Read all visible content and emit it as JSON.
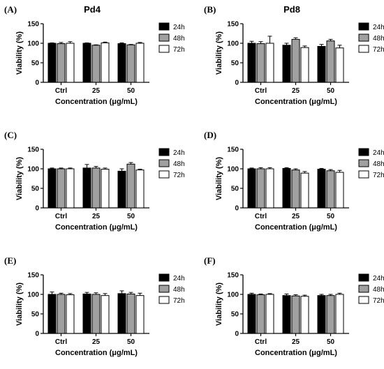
{
  "chart_data": [
    {
      "type": "bar",
      "panel_label": "(A)",
      "title": "Pd4",
      "xlabel": "Concentration (μg/mL)",
      "ylabel": "Viability (%)",
      "categories": [
        "Ctrl",
        "25",
        "50"
      ],
      "yticks": [
        "0",
        "50",
        "100",
        "150"
      ],
      "ylim": [
        0,
        150
      ],
      "legend_position": "right",
      "grid": false,
      "series": [
        {
          "name": "24h",
          "color": "#000000",
          "values": [
            100,
            100,
            99
          ],
          "errors": [
            1,
            1,
            2
          ]
        },
        {
          "name": "48h",
          "color": "#a0a0a0",
          "values": [
            99,
            95,
            96
          ],
          "errors": [
            3,
            1,
            1
          ]
        },
        {
          "name": "72h",
          "color": "#ffffff",
          "values": [
            100,
            101,
            100
          ],
          "errors": [
            4,
            2,
            2
          ]
        }
      ]
    },
    {
      "type": "bar",
      "panel_label": "(B)",
      "title": "Pd8",
      "xlabel": "Concentration (μg/mL)",
      "ylabel": "Viability (%)",
      "categories": [
        "Ctrl",
        "25",
        "50"
      ],
      "yticks": [
        "0",
        "50",
        "100",
        "150"
      ],
      "ylim": [
        0,
        150
      ],
      "legend_position": "right",
      "grid": false,
      "series": [
        {
          "name": "24h",
          "color": "#000000",
          "values": [
            100,
            95,
            92
          ],
          "errors": [
            5,
            5,
            5
          ]
        },
        {
          "name": "48h",
          "color": "#a0a0a0",
          "values": [
            99,
            110,
            106
          ],
          "errors": [
            5,
            4,
            4
          ]
        },
        {
          "name": "72h",
          "color": "#ffffff",
          "values": [
            100,
            89,
            88
          ],
          "errors": [
            18,
            4,
            7
          ]
        }
      ]
    },
    {
      "type": "bar",
      "panel_label": "(C)",
      "title": "",
      "xlabel": "Concentration (μg/mL)",
      "ylabel": "Viability (%)",
      "categories": [
        "Ctrl",
        "25",
        "50"
      ],
      "yticks": [
        "0",
        "50",
        "100",
        "150"
      ],
      "ylim": [
        0,
        150
      ],
      "legend_position": "right",
      "grid": false,
      "series": [
        {
          "name": "24h",
          "color": "#000000",
          "values": [
            100,
            102,
            94
          ],
          "errors": [
            2,
            9,
            6
          ]
        },
        {
          "name": "48h",
          "color": "#a0a0a0",
          "values": [
            100,
            102,
            112
          ],
          "errors": [
            2,
            4,
            4
          ]
        },
        {
          "name": "72h",
          "color": "#ffffff",
          "values": [
            100,
            99,
            97
          ],
          "errors": [
            2,
            3,
            2
          ]
        }
      ]
    },
    {
      "type": "bar",
      "panel_label": "(D)",
      "title": "",
      "xlabel": "Concentration (μg/mL)",
      "ylabel": "Viability (%)",
      "categories": [
        "Ctrl",
        "25",
        "50"
      ],
      "yticks": [
        "0",
        "50",
        "100",
        "150"
      ],
      "ylim": [
        0,
        150
      ],
      "legend_position": "right",
      "grid": false,
      "series": [
        {
          "name": "24h",
          "color": "#000000",
          "values": [
            100,
            101,
            99
          ],
          "errors": [
            2,
            2,
            2
          ]
        },
        {
          "name": "48h",
          "color": "#a0a0a0",
          "values": [
            100,
            97,
            95
          ],
          "errors": [
            3,
            3,
            3
          ]
        },
        {
          "name": "72h",
          "color": "#ffffff",
          "values": [
            100,
            89,
            91
          ],
          "errors": [
            3,
            4,
            5
          ]
        }
      ]
    },
    {
      "type": "bar",
      "panel_label": "(E)",
      "title": "",
      "xlabel": "Concentration (μg/mL)",
      "ylabel": "Viability (%)",
      "categories": [
        "Ctrl",
        "25",
        "50"
      ],
      "yticks": [
        "0",
        "50",
        "100",
        "150"
      ],
      "ylim": [
        0,
        150
      ],
      "legend_position": "right",
      "grid": false,
      "series": [
        {
          "name": "24h",
          "color": "#000000",
          "values": [
            100,
            101,
            102
          ],
          "errors": [
            6,
            4,
            7
          ]
        },
        {
          "name": "48h",
          "color": "#a0a0a0",
          "values": [
            100,
            100,
            101
          ],
          "errors": [
            3,
            4,
            4
          ]
        },
        {
          "name": "72h",
          "color": "#ffffff",
          "values": [
            99,
            97,
            97
          ],
          "errors": [
            3,
            5,
            6
          ]
        }
      ]
    },
    {
      "type": "bar",
      "panel_label": "(F)",
      "title": "",
      "xlabel": "Concentration (μg/mL)",
      "ylabel": "Viability (%)",
      "categories": [
        "Ctrl",
        "25",
        "50"
      ],
      "yticks": [
        "0",
        "50",
        "100",
        "150"
      ],
      "ylim": [
        0,
        150
      ],
      "legend_position": "right",
      "grid": false,
      "series": [
        {
          "name": "24h",
          "color": "#000000",
          "values": [
            100,
            97,
            97
          ],
          "errors": [
            3,
            4,
            3
          ]
        },
        {
          "name": "48h",
          "color": "#a0a0a0",
          "values": [
            99,
            96,
            97
          ],
          "errors": [
            2,
            3,
            3
          ]
        },
        {
          "name": "72h",
          "color": "#ffffff",
          "values": [
            100,
            95,
            100
          ],
          "errors": [
            2,
            3,
            3
          ]
        }
      ]
    }
  ]
}
